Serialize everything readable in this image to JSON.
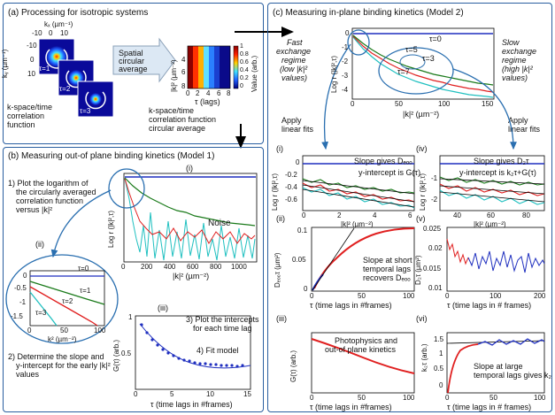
{
  "panel_a": {
    "title": "(a) Processing for isotropic systems",
    "kx_label": "kₓ (µm⁻¹)",
    "ky_label": "kᵧ (µm⁻¹)",
    "kx_ticks": [
      "-10",
      "0",
      "10"
    ],
    "ky_ticks": [
      "-10",
      "0",
      "10"
    ],
    "tau1": "τ=1",
    "tau2": "τ=2",
    "tau3": "τ=3",
    "caption_left": [
      "k-space/time",
      "correlation",
      "function"
    ],
    "arrow_text": [
      "Spatial",
      "circular",
      "average"
    ],
    "heat_ylabel": "|k|² (µm⁻²)",
    "heat_y_ticks": [
      "4",
      "6",
      "8"
    ],
    "heat_x_ticks": [
      "0",
      "2",
      "4",
      "6",
      "8"
    ],
    "heat_xlabel": "τ (lags)",
    "colorbar_ticks": [
      "1",
      "0.8",
      "0.6",
      "0.4",
      "0.2",
      "0"
    ],
    "colorbar_label": "Value (arb.)",
    "caption_right": [
      "k-space/time",
      "correlation function",
      "circular average"
    ]
  },
  "panel_b": {
    "title": "(b) Measuring out-of plane binding kinetics (Model 1)",
    "step1": [
      "1) Plot the logarithm of",
      "the circularly averaged",
      "correlation function",
      "versus |k|²"
    ],
    "label_i": "(i)",
    "label_ii": "(ii)",
    "label_iii": "(iii)",
    "noise": "Noise",
    "main_ylabel": "Log r (|k|²,τ)",
    "main_xlabel": "|k|² (µm⁻²)",
    "main_x_ticks": [
      "0",
      "200",
      "400",
      "600",
      "800",
      "1000"
    ],
    "inset_y_ticks": [
      "0",
      "-0.5",
      "-1",
      "-1.5"
    ],
    "inset_x_ticks": [
      "0",
      "50",
      "100"
    ],
    "inset_xlabel": "k² (µm⁻²)",
    "inset_taus": [
      "τ=0",
      "τ=1",
      "τ=2",
      "τ=3"
    ],
    "step2": [
      "2) Determine the slope and",
      "y-intercept for the early |k|²",
      "values"
    ],
    "step3": [
      "3) Plot the intercepts",
      "for each time lag"
    ],
    "step4": "4) Fit model",
    "g_ylabel": "G(τ) (arb.)",
    "g_y_ticks": [
      "1",
      "0.5"
    ],
    "g_x_ticks": [
      "0",
      "5",
      "10",
      "15"
    ],
    "g_xlabel": "τ (time lags in #frames)"
  },
  "panel_c": {
    "title": "(c) Measuring in-plane binding kinetics (Model 2)",
    "fast": [
      "Fast",
      "exchange",
      "regime",
      "(low |k|²",
      "values)"
    ],
    "slow": [
      "Slow",
      "exchange",
      "regime",
      "(high |k|²",
      "values)"
    ],
    "fits_left": [
      "Apply",
      "linear fits"
    ],
    "fits_right": [
      "Apply",
      "linear fits"
    ],
    "top_ylabel": "Log r (|k|²,τ)",
    "top_xlabel": "|k|² (µm⁻²)",
    "top_x_ticks": [
      "0",
      "50",
      "100",
      "150"
    ],
    "top_y_ticks": [
      "0",
      "-1",
      "-2",
      "-3",
      "-4"
    ],
    "top_taus": [
      "τ=0",
      "τ=5",
      "τ=3",
      "τ=7"
    ],
    "label_i": "(i)",
    "label_ii": "(ii)",
    "label_iii": "(iii)",
    "label_iv": "(iv)",
    "label_v": "(v)",
    "label_vi": "(vi)",
    "ci_note": [
      "Slope gives Dₑₒₒ",
      "y-intercept is G(τ)"
    ],
    "ci_ylabel": "Log r (|k|²,τ)",
    "ci_xlabel": "|k|² (µm⁻²)",
    "ci_x_ticks": [
      "0",
      "2",
      "4",
      "6"
    ],
    "ci_y_ticks": [
      "0",
      "-0.2",
      "-0.4",
      "-0.6"
    ],
    "civ_note": [
      "Slope gives D₂τ",
      "y-intercept is k₂τ+G(τ)"
    ],
    "civ_ylabel": "Log r (|k|²,τ)",
    "civ_xlabel": "|k|² (µm⁻²)",
    "civ_x_ticks": [
      "40",
      "60",
      "80"
    ],
    "civ_y_ticks": [
      "-1",
      "-2"
    ],
    "cii_note": [
      "Slope at short",
      "temporal lags",
      "recovers Dₑₒₒ"
    ],
    "cii_ylabel": "Dₑₒₒτ (µm²)",
    "cii_xlabel": "τ (time lags in #frames)",
    "cii_x_ticks": [
      "0",
      "50",
      "100"
    ],
    "cii_y_ticks": [
      "0.1",
      "0.05",
      "0"
    ],
    "cv_ylabel": "D₂τ (µm²)",
    "cv_xlabel": "τ (time lags in # frames)",
    "cv_x_ticks": [
      "0",
      "100",
      "200"
    ],
    "cv_y_ticks": [
      "0.025",
      "0.02",
      "0.015",
      "0.01"
    ],
    "ciii_note": [
      "Photophysics and",
      "out-of plane kinetics"
    ],
    "ciii_ylabel": "G(τ) (arb.)",
    "ciii_xlabel": "τ (time lags in #frames)",
    "ciii_x_ticks": [
      "0",
      "50",
      "100"
    ],
    "cvi_note": [
      "Slope at large",
      "temporal lags gives k₂"
    ],
    "cvi_ylabel": "k₂τ (arb.)",
    "cvi_xlabel": "τ (time lags in # frames)",
    "cvi_x_ticks": [
      "0",
      "50",
      "100"
    ],
    "cvi_y_ticks": [
      "1.5",
      "1",
      "0.5",
      "0"
    ]
  },
  "colors": {
    "border": "#2a5fa0",
    "blue": "#1f2fbf",
    "green": "#1a7a1a",
    "red": "#e02020",
    "cyan": "#20c0c0",
    "ellipse": "#2a6fb0"
  }
}
